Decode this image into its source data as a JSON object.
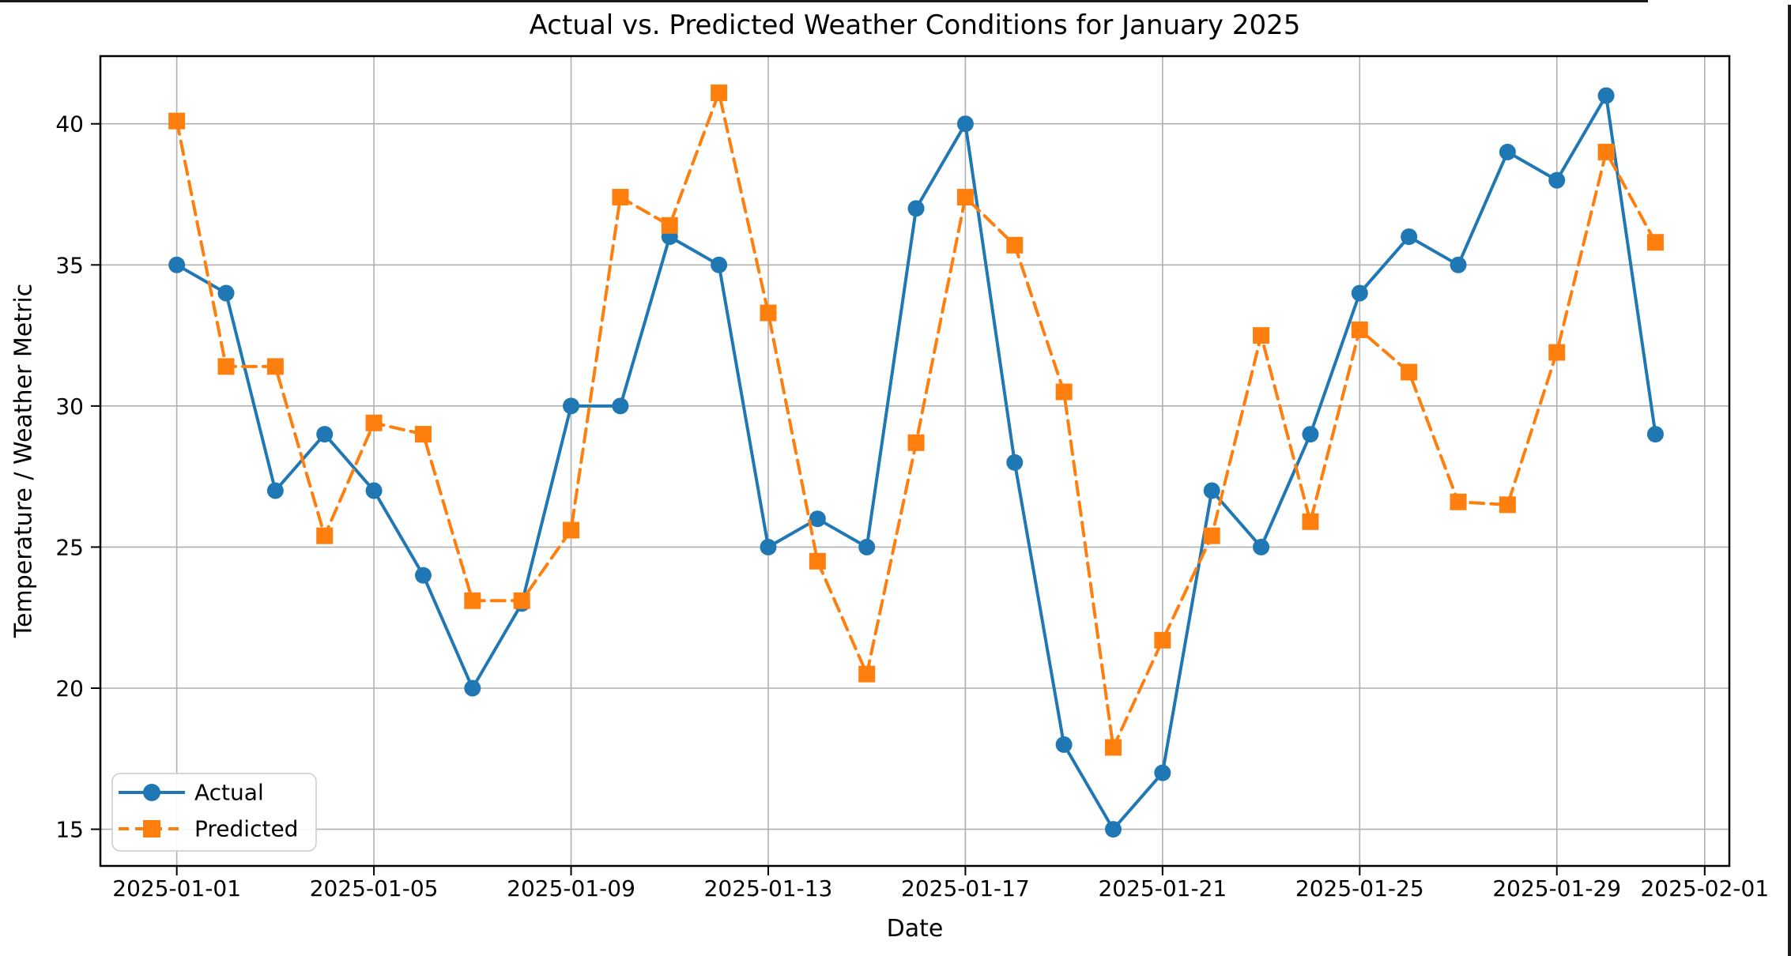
{
  "chart_data": {
    "type": "line",
    "title": "Actual vs. Predicted Weather Conditions for January 2025",
    "xlabel": "Date",
    "ylabel": "Temperature / Weather Metric",
    "x": [
      "2025-01-01",
      "2025-01-02",
      "2025-01-03",
      "2025-01-04",
      "2025-01-05",
      "2025-01-06",
      "2025-01-07",
      "2025-01-08",
      "2025-01-09",
      "2025-01-10",
      "2025-01-11",
      "2025-01-12",
      "2025-01-13",
      "2025-01-14",
      "2025-01-15",
      "2025-01-16",
      "2025-01-17",
      "2025-01-18",
      "2025-01-19",
      "2025-01-20",
      "2025-01-21",
      "2025-01-22",
      "2025-01-23",
      "2025-01-24",
      "2025-01-25",
      "2025-01-26",
      "2025-01-27",
      "2025-01-28",
      "2025-01-29",
      "2025-01-30",
      "2025-01-31"
    ],
    "series": [
      {
        "name": "Actual",
        "color": "#1f77b4",
        "marker": "circle",
        "line_style": "solid",
        "values": [
          35,
          34,
          27,
          29,
          27,
          24,
          20,
          23,
          30,
          30,
          36,
          35,
          25,
          26,
          25,
          37,
          40,
          28,
          18,
          15,
          17,
          27,
          25,
          29,
          34,
          36,
          35,
          39,
          38,
          41,
          29
        ]
      },
      {
        "name": "Predicted",
        "color": "#ff7f0e",
        "marker": "square",
        "line_style": "dashed",
        "values": [
          40.1,
          31.4,
          31.4,
          25.4,
          29.4,
          29.0,
          23.1,
          23.1,
          25.6,
          37.4,
          36.4,
          41.1,
          33.3,
          24.5,
          20.5,
          28.7,
          37.4,
          35.7,
          30.5,
          17.9,
          21.7,
          25.4,
          32.5,
          25.9,
          32.7,
          31.2,
          26.6,
          26.5,
          31.9,
          39.0,
          35.8
        ]
      }
    ],
    "x_tick_labels": [
      "2025-01-01",
      "2025-01-05",
      "2025-01-09",
      "2025-01-13",
      "2025-01-17",
      "2025-01-21",
      "2025-01-25",
      "2025-01-29",
      "2025-02-01"
    ],
    "x_tick_days": [
      1,
      5,
      9,
      13,
      17,
      21,
      25,
      29,
      32
    ],
    "y_ticks": [
      15,
      20,
      25,
      30,
      35,
      40
    ],
    "ylim": [
      13.7,
      42.4
    ],
    "xlim_days": [
      -0.55,
      32.5
    ],
    "grid": true,
    "legend_position": "lower left"
  },
  "style": {
    "grid_color": "#b0b0b0",
    "spine_color": "#000000",
    "tick_color": "#000000",
    "text_color": "#000000",
    "legend_border_color": "#cccccc",
    "legend_background": "#ffffff",
    "background": "#ffffff"
  }
}
